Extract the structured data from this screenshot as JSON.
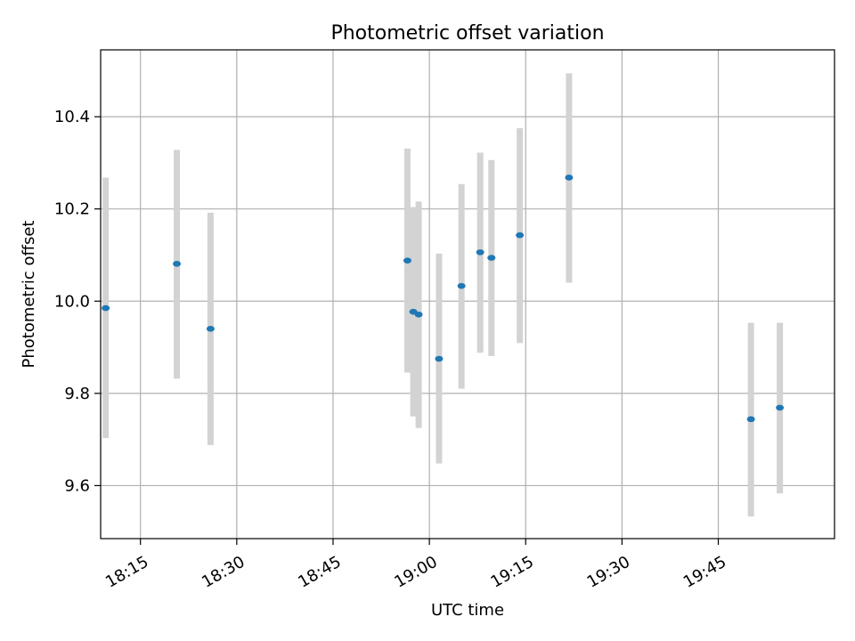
{
  "chart_data": {
    "type": "scatter",
    "title": "Photometric offset variation",
    "xlabel": "UTC time",
    "ylabel": "Photometric offset",
    "x_unit": "minutes after midnight UTC",
    "xlim": [
      1088.8,
      1203.1
    ],
    "ylim": [
      9.485,
      10.545
    ],
    "x_tick_values": [
      1095,
      1110,
      1125,
      1140,
      1155,
      1170,
      1185
    ],
    "x_tick_labels": [
      "18:15",
      "18:30",
      "18:45",
      "19:00",
      "19:15",
      "19:30",
      "19:45"
    ],
    "y_ticks": [
      9.6,
      9.8,
      10.0,
      10.2,
      10.4
    ],
    "y_tick_labels": [
      "9.6",
      "9.8",
      "10.0",
      "10.2",
      "10.4"
    ],
    "grid": true,
    "colors": {
      "point": "#1f77b4",
      "errorbar": "#d3d3d3",
      "grid": "#b0b0b0"
    },
    "points": [
      {
        "time": "18:09:35",
        "y": 9.985,
        "yerr_low": 9.703,
        "yerr_high": 10.268
      },
      {
        "time": "18:20:40",
        "y": 10.081,
        "yerr_low": 9.832,
        "yerr_high": 10.328
      },
      {
        "time": "18:25:55",
        "y": 9.94,
        "yerr_low": 9.688,
        "yerr_high": 10.192
      },
      {
        "time": "18:56:35",
        "y": 10.088,
        "yerr_low": 9.845,
        "yerr_high": 10.331
      },
      {
        "time": "18:57:30",
        "y": 9.977,
        "yerr_low": 9.75,
        "yerr_high": 10.204
      },
      {
        "time": "18:58:20",
        "y": 9.971,
        "yerr_low": 9.725,
        "yerr_high": 10.216
      },
      {
        "time": "19:01:30",
        "y": 9.875,
        "yerr_low": 9.648,
        "yerr_high": 10.103
      },
      {
        "time": "19:05:00",
        "y": 10.033,
        "yerr_low": 9.81,
        "yerr_high": 10.254
      },
      {
        "time": "19:07:55",
        "y": 10.106,
        "yerr_low": 9.888,
        "yerr_high": 10.322
      },
      {
        "time": "19:09:40",
        "y": 10.094,
        "yerr_low": 9.881,
        "yerr_high": 10.306
      },
      {
        "time": "19:14:05",
        "y": 10.143,
        "yerr_low": 9.909,
        "yerr_high": 10.375
      },
      {
        "time": "19:21:45",
        "y": 10.268,
        "yerr_low": 10.04,
        "yerr_high": 10.494
      },
      {
        "time": "19:50:05",
        "y": 9.744,
        "yerr_low": 9.533,
        "yerr_high": 9.953
      },
      {
        "time": "19:54:35",
        "y": 9.769,
        "yerr_low": 9.583,
        "yerr_high": 9.953
      }
    ]
  }
}
